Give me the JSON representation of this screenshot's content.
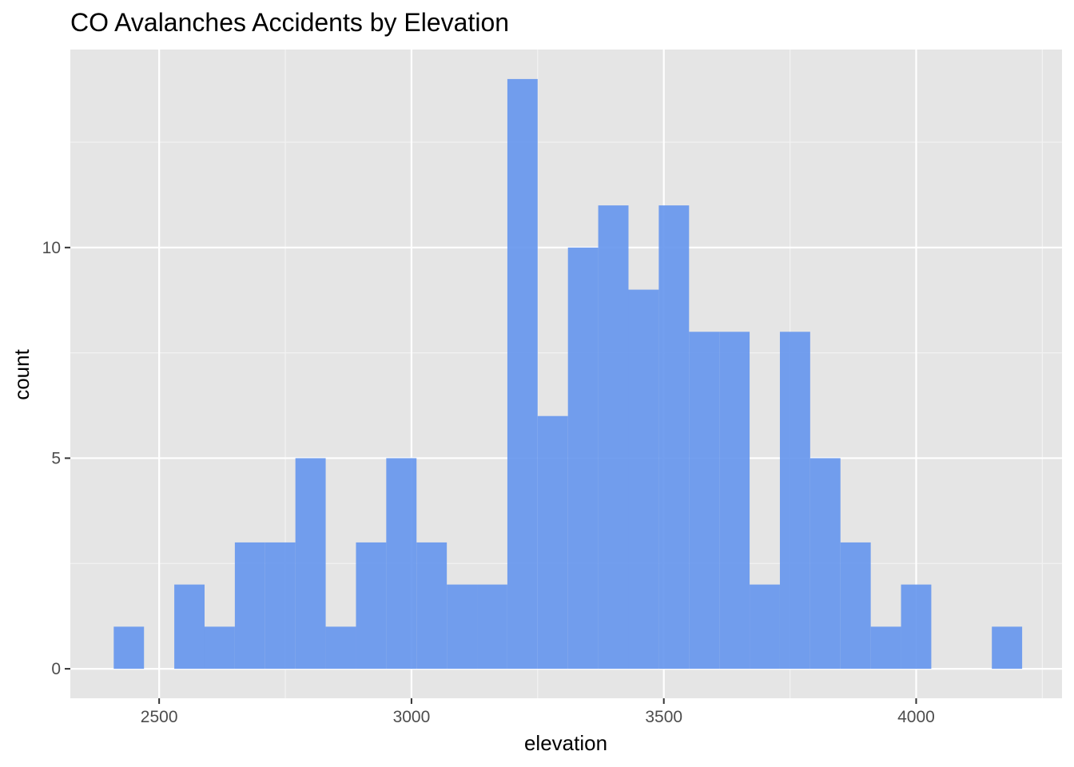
{
  "chart_data": {
    "type": "bar",
    "title": "CO Avalanches Accidents by Elevation",
    "xlabel": "elevation",
    "ylabel": "count",
    "xlim": [
      2324,
      4289
    ],
    "ylim": [
      -0.7,
      14.7
    ],
    "x_ticks": [
      2500,
      3000,
      3500,
      4000
    ],
    "y_ticks": [
      0,
      5,
      10
    ],
    "bin_width": 60,
    "bins": [
      {
        "x0": 2410,
        "x1": 2470,
        "count": 1
      },
      {
        "x0": 2470,
        "x1": 2530,
        "count": 0
      },
      {
        "x0": 2530,
        "x1": 2590,
        "count": 2
      },
      {
        "x0": 2590,
        "x1": 2650,
        "count": 1
      },
      {
        "x0": 2650,
        "x1": 2710,
        "count": 3
      },
      {
        "x0": 2710,
        "x1": 2770,
        "count": 3
      },
      {
        "x0": 2770,
        "x1": 2830,
        "count": 5
      },
      {
        "x0": 2830,
        "x1": 2890,
        "count": 1
      },
      {
        "x0": 2890,
        "x1": 2950,
        "count": 3
      },
      {
        "x0": 2950,
        "x1": 3010,
        "count": 5
      },
      {
        "x0": 3010,
        "x1": 3070,
        "count": 3
      },
      {
        "x0": 3070,
        "x1": 3130,
        "count": 2
      },
      {
        "x0": 3130,
        "x1": 3190,
        "count": 2
      },
      {
        "x0": 3190,
        "x1": 3250,
        "count": 14
      },
      {
        "x0": 3250,
        "x1": 3310,
        "count": 6
      },
      {
        "x0": 3310,
        "x1": 3370,
        "count": 10
      },
      {
        "x0": 3370,
        "x1": 3430,
        "count": 11
      },
      {
        "x0": 3430,
        "x1": 3490,
        "count": 9
      },
      {
        "x0": 3490,
        "x1": 3550,
        "count": 11
      },
      {
        "x0": 3550,
        "x1": 3610,
        "count": 8
      },
      {
        "x0": 3610,
        "x1": 3670,
        "count": 8
      },
      {
        "x0": 3670,
        "x1": 3730,
        "count": 2
      },
      {
        "x0": 3730,
        "x1": 3790,
        "count": 8
      },
      {
        "x0": 3790,
        "x1": 3850,
        "count": 5
      },
      {
        "x0": 3850,
        "x1": 3910,
        "count": 3
      },
      {
        "x0": 3910,
        "x1": 3970,
        "count": 1
      },
      {
        "x0": 3970,
        "x1": 4030,
        "count": 2
      },
      {
        "x0": 4030,
        "x1": 4090,
        "count": 0
      },
      {
        "x0": 4090,
        "x1": 4150,
        "count": 0
      },
      {
        "x0": 4150,
        "x1": 4210,
        "count": 1
      }
    ],
    "bar_color": "#6495ED",
    "panel_background": "#E5E5E5",
    "grid": true,
    "legend": "none"
  }
}
